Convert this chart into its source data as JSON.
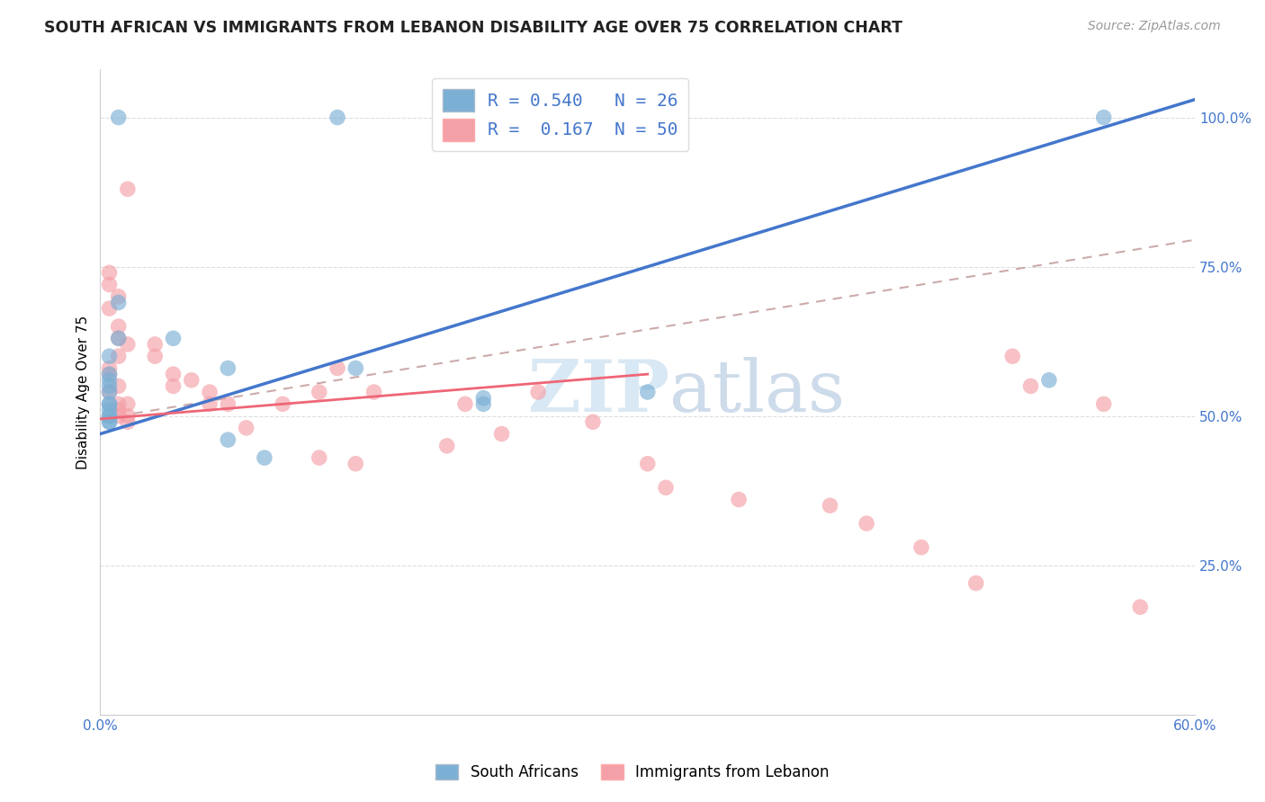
{
  "title": "SOUTH AFRICAN VS IMMIGRANTS FROM LEBANON DISABILITY AGE OVER 75 CORRELATION CHART",
  "source": "Source: ZipAtlas.com",
  "ylabel": "Disability Age Over 75",
  "xmin": 0.0,
  "xmax": 0.6,
  "ymin": 0.0,
  "ymax": 1.08,
  "yticks": [
    0.25,
    0.5,
    0.75,
    1.0
  ],
  "ytick_labels": [
    "25.0%",
    "50.0%",
    "75.0%",
    "100.0%"
  ],
  "xticks": [
    0.0,
    0.1,
    0.2,
    0.3,
    0.4,
    0.5,
    0.6
  ],
  "xtick_labels": [
    "0.0%",
    "",
    "",
    "",
    "",
    "",
    "60.0%"
  ],
  "legend_r_blue": "R = 0.540",
  "legend_n_blue": "N = 26",
  "legend_r_pink": "R =  0.167",
  "legend_n_pink": "N = 50",
  "legend_label_blue": "South Africans",
  "legend_label_pink": "Immigrants from Lebanon",
  "blue_scatter_color": "#7BAFD4",
  "pink_scatter_color": "#F4A0A8",
  "blue_line_color": "#4477CC",
  "pink_line_color": "#EE6677",
  "dashed_line_color": "#CCAAAA",
  "grid_color": "#DDDDDD",
  "tick_color": "#4477CC",
  "watermark_color": "#D8E8F4",
  "blue_line_x0": 0.0,
  "blue_line_y0": 0.47,
  "blue_line_x1": 0.6,
  "blue_line_y1": 1.03,
  "pink_line_x0": 0.0,
  "pink_line_y0": 0.495,
  "pink_line_x1": 0.3,
  "pink_line_y1": 0.57,
  "dashed_line_x0": 0.0,
  "dashed_line_y0": 0.495,
  "dashed_line_x1": 0.6,
  "dashed_line_y1": 0.795,
  "blue_scatter_x": [
    0.01,
    0.13,
    0.01,
    0.01,
    0.005,
    0.005,
    0.005,
    0.005,
    0.005,
    0.005,
    0.005,
    0.005,
    0.005,
    0.005,
    0.005,
    0.005,
    0.04,
    0.07,
    0.07,
    0.09,
    0.14,
    0.21,
    0.21,
    0.3,
    0.55,
    0.52
  ],
  "blue_scatter_y": [
    1.0,
    1.0,
    0.69,
    0.63,
    0.6,
    0.57,
    0.56,
    0.55,
    0.54,
    0.52,
    0.52,
    0.51,
    0.5,
    0.5,
    0.49,
    0.49,
    0.63,
    0.58,
    0.46,
    0.43,
    0.58,
    0.52,
    0.53,
    0.54,
    1.0,
    0.56
  ],
  "pink_scatter_x": [
    0.015,
    0.005,
    0.005,
    0.01,
    0.005,
    0.01,
    0.01,
    0.015,
    0.01,
    0.005,
    0.005,
    0.01,
    0.005,
    0.01,
    0.015,
    0.01,
    0.01,
    0.015,
    0.015,
    0.03,
    0.03,
    0.04,
    0.04,
    0.05,
    0.06,
    0.06,
    0.07,
    0.08,
    0.1,
    0.12,
    0.12,
    0.13,
    0.14,
    0.15,
    0.19,
    0.2,
    0.22,
    0.24,
    0.27,
    0.3,
    0.31,
    0.35,
    0.4,
    0.42,
    0.45,
    0.48,
    0.5,
    0.51,
    0.55,
    0.57
  ],
  "pink_scatter_y": [
    0.88,
    0.74,
    0.72,
    0.7,
    0.68,
    0.65,
    0.63,
    0.62,
    0.6,
    0.58,
    0.57,
    0.55,
    0.54,
    0.52,
    0.52,
    0.51,
    0.5,
    0.5,
    0.49,
    0.62,
    0.6,
    0.57,
    0.55,
    0.56,
    0.54,
    0.52,
    0.52,
    0.48,
    0.52,
    0.54,
    0.43,
    0.58,
    0.42,
    0.54,
    0.45,
    0.52,
    0.47,
    0.54,
    0.49,
    0.42,
    0.38,
    0.36,
    0.35,
    0.32,
    0.28,
    0.22,
    0.6,
    0.55,
    0.52,
    0.18
  ]
}
